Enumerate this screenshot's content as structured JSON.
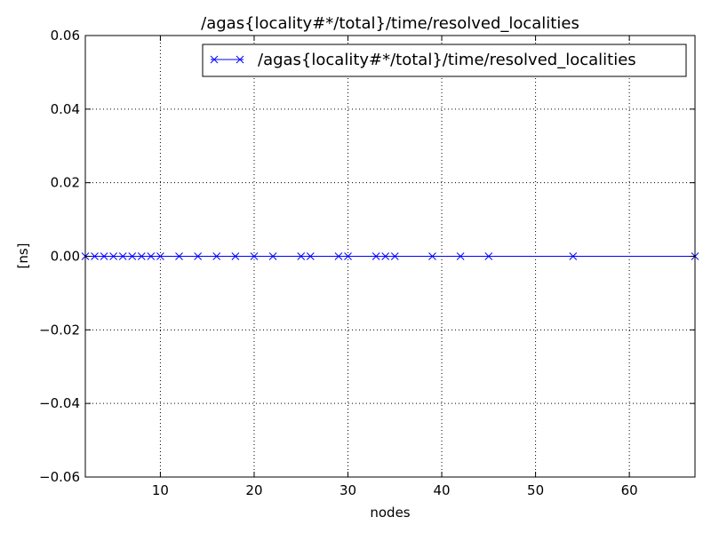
{
  "chart_data": {
    "type": "line",
    "title": "/agas{locality#*/total}/time/resolved_localities",
    "xlabel": "nodes",
    "ylabel": "[ns]",
    "xlim": [
      2,
      67
    ],
    "ylim": [
      -0.06,
      0.06
    ],
    "xticks": [
      10,
      20,
      30,
      40,
      50,
      60
    ],
    "xtick_labels": [
      "10",
      "20",
      "30",
      "40",
      "50",
      "60"
    ],
    "yticks": [
      -0.06,
      -0.04,
      -0.02,
      0.0,
      0.02,
      0.04,
      0.06
    ],
    "ytick_labels": [
      "−0.06",
      "−0.04",
      "−0.02",
      "0.00",
      "0.02",
      "0.04",
      "0.06"
    ],
    "grid": true,
    "legend_position": "top-right",
    "series": [
      {
        "name": "/agas{locality#*/total}/time/resolved_localities",
        "color": "#0000ff",
        "marker": "x",
        "x": [
          2,
          3,
          4,
          5,
          6,
          7,
          8,
          9,
          10,
          12,
          14,
          16,
          18,
          20,
          22,
          25,
          26,
          29,
          30,
          33,
          34,
          35,
          39,
          42,
          45,
          54,
          67
        ],
        "y": [
          0,
          0,
          0,
          0,
          0,
          0,
          0,
          0,
          0,
          0,
          0,
          0,
          0,
          0,
          0,
          0,
          0,
          0,
          0,
          0,
          0,
          0,
          0,
          0,
          0,
          0,
          0
        ]
      }
    ]
  }
}
